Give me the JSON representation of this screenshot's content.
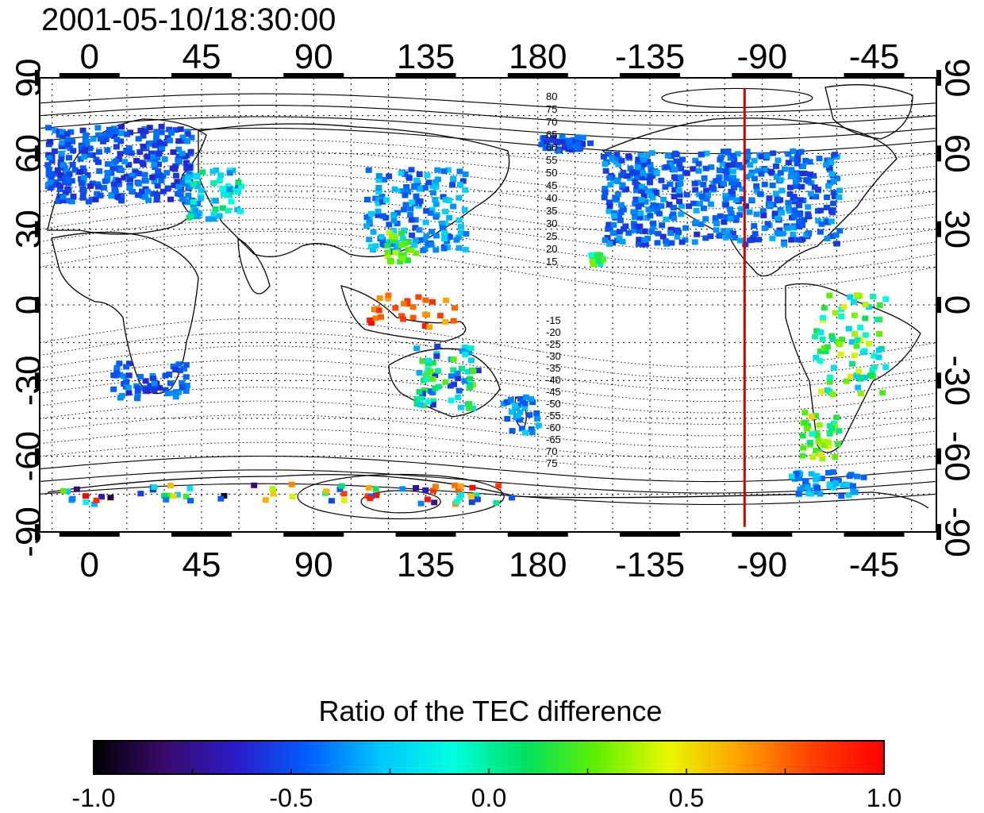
{
  "timestamp": "2001-05-10/18:30:00",
  "map": {
    "x_tick_labels": [
      "0",
      "45",
      "90",
      "135",
      "180",
      "-135",
      "-90",
      "-45"
    ],
    "x_tick_lons": [
      0,
      45,
      90,
      135,
      180,
      225,
      270,
      315
    ],
    "y_tick_labels": [
      "90",
      "60",
      "30",
      "0",
      "-30",
      "-60",
      "-90"
    ],
    "y_tick_lats": [
      90,
      60,
      30,
      0,
      -30,
      -60,
      -90
    ],
    "lon_range": [
      -20,
      340
    ],
    "lat_range": [
      -90,
      90
    ],
    "highlight_meridian_lon": -97,
    "highlight_color": "#d40000",
    "north_contour_labels": [
      "80",
      "75",
      "70",
      "65",
      "60",
      "55",
      "50",
      "45",
      "40",
      "35",
      "30",
      "25",
      "20",
      "15"
    ],
    "south_contour_labels": [
      "-15",
      "-20",
      "-25",
      "-30",
      "-35",
      "-40",
      "-45",
      "-50",
      "-55",
      "-60",
      "-65",
      "70",
      "75"
    ]
  },
  "colorbar": {
    "title": "Ratio of the TEC difference",
    "range": [
      -1.0,
      1.0
    ],
    "tick_labels": [
      "-1.0",
      "-0.5",
      "0.0",
      "0.5",
      "1.0"
    ],
    "tick_values": [
      -1.0,
      -0.5,
      0.0,
      0.5,
      1.0
    ],
    "colormap_stops": [
      "#000000",
      "#3a0a6e",
      "#2a1cc8",
      "#0060ff",
      "#00c8ff",
      "#00ffe0",
      "#00e060",
      "#60f000",
      "#e8f800",
      "#ffa000",
      "#ff4000",
      "#ff0000"
    ]
  }
}
